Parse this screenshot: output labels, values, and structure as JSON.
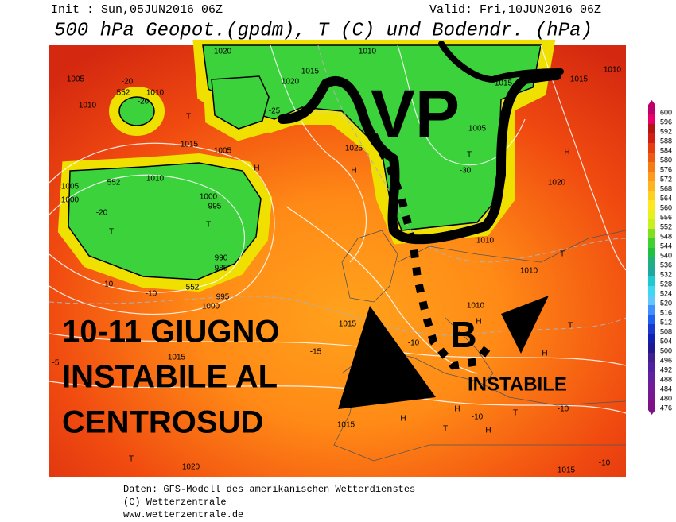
{
  "header": {
    "init": "Init : Sun,05JUN2016 06Z",
    "valid": "Valid: Fri,10JUN2016 06Z",
    "title": "500 hPa Geopot.(gpdm), T (C) und Bodendr. (hPa)"
  },
  "annotations": {
    "vp": "VP",
    "low": "B",
    "line1": "10-11 GIUGNO",
    "line2": "INSTABILE AL",
    "line3": "CENTROSUD",
    "instabile": "INSTABILE"
  },
  "map_labels": [
    "1020",
    "1005",
    "1010",
    "1010",
    "-20",
    "552",
    "-20",
    "1015",
    "1005",
    "1010",
    "552",
    "1005",
    "1000",
    "-20",
    "T",
    "1000",
    "995",
    "T",
    "990",
    "985",
    "552",
    "995",
    "1000",
    "-10",
    "-10",
    "T",
    "1015",
    "1020",
    "1010",
    "1025",
    "H",
    "-25",
    "H",
    "1005",
    "T",
    "-30",
    "1015",
    "1015",
    "1010",
    "H",
    "1020",
    "1010",
    "1010",
    "H",
    "1010",
    "T",
    "T",
    "H",
    "1015",
    "1015",
    "-15",
    "-10",
    "H",
    "-10",
    "T",
    "-10",
    "H",
    "T",
    "H",
    "1015",
    "T",
    "1020",
    "1015",
    "-10",
    "-5"
  ],
  "legend": {
    "values": [
      600,
      596,
      592,
      588,
      584,
      580,
      576,
      572,
      568,
      564,
      560,
      556,
      552,
      548,
      544,
      540,
      536,
      532,
      528,
      524,
      520,
      516,
      512,
      508,
      504,
      500,
      496,
      492,
      488,
      484,
      480,
      476
    ],
    "colors": [
      "#c0006a",
      "#e8006a",
      "#b41414",
      "#d01e10",
      "#e83c10",
      "#f05a10",
      "#f87a14",
      "#ff9a1c",
      "#ffb420",
      "#ffd020",
      "#ffe820",
      "#e8f020",
      "#c8f020",
      "#80e020",
      "#40d030",
      "#20c040",
      "#20b080",
      "#20a8a0",
      "#20c8d0",
      "#40d8f0",
      "#60c8ff",
      "#4090ff",
      "#2060f0",
      "#1838d0",
      "#1020b0",
      "#201890",
      "#402090",
      "#5020a0",
      "#6020a0",
      "#701c98",
      "#781890",
      "#801088"
    ]
  },
  "footer": {
    "source": "Daten: GFS-Modell des amerikanischen Wetterdienstes",
    "copyright": "(C) Wetterzentrale",
    "url": "www.wetterzentrale.de"
  }
}
